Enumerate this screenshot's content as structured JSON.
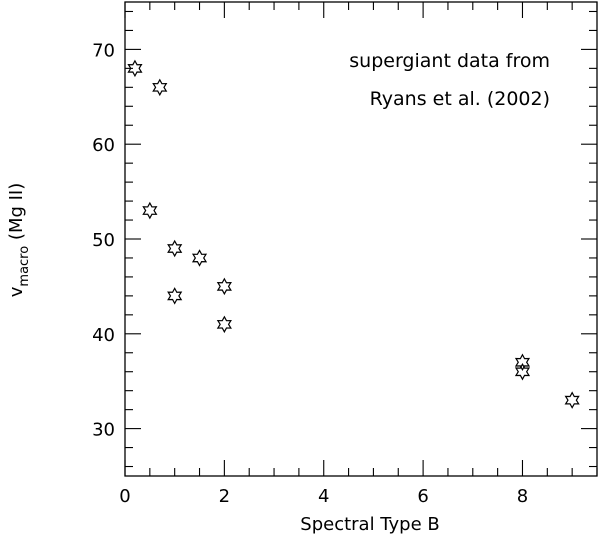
{
  "chart_data": {
    "type": "scatter",
    "xlabel": "Spectral Type B",
    "ylabel": {
      "main": "v",
      "sub": "macro",
      "suffix": " (Mg II)"
    },
    "xlim": [
      0,
      9.5
    ],
    "ylim": [
      25,
      75
    ],
    "x_major_ticks": [
      0,
      2,
      4,
      6,
      8
    ],
    "x_tick_labels": [
      "0",
      "2",
      "4",
      "6",
      "8"
    ],
    "x_minor_step": 0.5,
    "y_major_ticks": [
      30,
      40,
      50,
      60,
      70
    ],
    "y_tick_labels": [
      "30",
      "40",
      "50",
      "60",
      "70"
    ],
    "y_minor_step": 2,
    "grid": false,
    "marker": "six-pointed-star",
    "annotations": [
      "supergiant data from",
      "Ryans et al. (2002)"
    ],
    "points": [
      {
        "x": 0.2,
        "y": 68
      },
      {
        "x": 0.7,
        "y": 66
      },
      {
        "x": 0.5,
        "y": 53
      },
      {
        "x": 1.0,
        "y": 49
      },
      {
        "x": 1.0,
        "y": 44
      },
      {
        "x": 1.5,
        "y": 48
      },
      {
        "x": 2.0,
        "y": 45
      },
      {
        "x": 2.0,
        "y": 41
      },
      {
        "x": 8.0,
        "y": 37
      },
      {
        "x": 8.0,
        "y": 36
      },
      {
        "x": 9.0,
        "y": 33
      }
    ]
  }
}
